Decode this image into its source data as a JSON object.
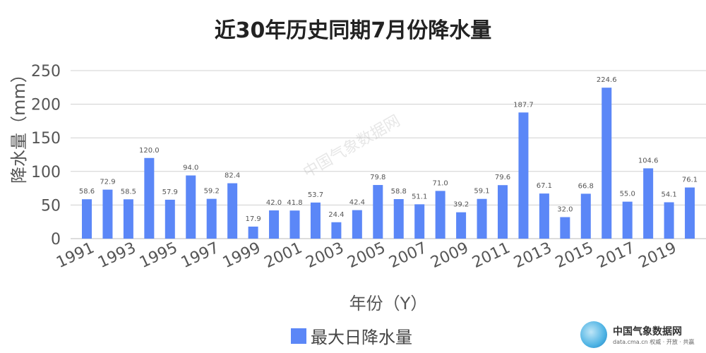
{
  "chart_data": {
    "type": "bar",
    "title": "近30年历史同期7月份降水量",
    "xlabel": "年份（Y）",
    "ylabel": "降水量（mm）",
    "ylim": [
      0,
      250
    ],
    "yticks": [
      0,
      50,
      100,
      150,
      200,
      250
    ],
    "grid": true,
    "legend_position": "bottom",
    "categories": [
      "1991",
      "1992",
      "1993",
      "1994",
      "1995",
      "1996",
      "1997",
      "1998",
      "1999",
      "2000",
      "2001",
      "2002",
      "2003",
      "2004",
      "2005",
      "2006",
      "2007",
      "2008",
      "2009",
      "2010",
      "2011",
      "2012",
      "2013",
      "2014",
      "2015",
      "2016",
      "2017",
      "2018",
      "2019",
      "2020"
    ],
    "tick_labels": [
      "1991",
      "1993",
      "1995",
      "1997",
      "1999",
      "2001",
      "2003",
      "2005",
      "2007",
      "2009",
      "2011",
      "2013",
      "2015",
      "2017",
      "2019"
    ],
    "series": [
      {
        "name": "最大日降水量",
        "color": "#5b87f7",
        "values": [
          58.6,
          72.9,
          58.5,
          120.0,
          57.9,
          94.0,
          59.2,
          82.4,
          17.9,
          42.0,
          41.8,
          53.7,
          24.4,
          42.4,
          79.8,
          58.8,
          51.1,
          71.0,
          39.2,
          59.1,
          79.6,
          187.7,
          67.1,
          32.0,
          66.8,
          224.6,
          55.0,
          104.6,
          54.1,
          76.1
        ]
      }
    ]
  },
  "watermark": "中国气象数据网",
  "logo": {
    "name": "中国气象数据网",
    "sub": "data.cma.cn 权威 · 开放 · 共赢"
  }
}
